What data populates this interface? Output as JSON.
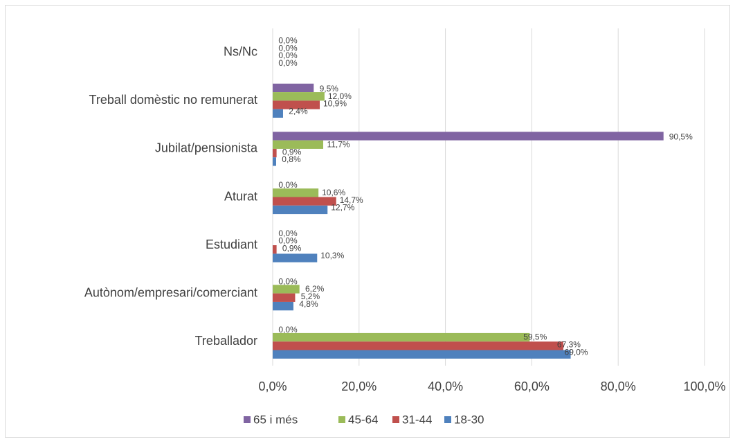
{
  "chart_data": {
    "type": "hbar",
    "categories": [
      "Ns/Nc",
      "Treball domèstic no remunerat",
      "Jubilat/pensionista",
      "Aturat",
      "Estudiant",
      "Autònom/empresari/comerciant",
      "Treballador"
    ],
    "series": [
      {
        "name": "65 i més",
        "color": "#8064a2",
        "values": [
          0,
          9.5,
          90.5,
          0,
          0,
          0,
          0
        ],
        "value_labels": [
          "0,0%",
          "9,5%",
          "90,5%",
          "0,0%",
          "0,0%",
          "0,0%",
          "0,0%"
        ]
      },
      {
        "name": "45-64",
        "color": "#9bbb59",
        "values": [
          0,
          12.0,
          11.7,
          10.6,
          0,
          6.2,
          59.5
        ],
        "value_labels": [
          "0,0%",
          "12,0%",
          "11,7%",
          "10,6%",
          "0,0%",
          "6,2%",
          "59,5%"
        ]
      },
      {
        "name": "31-44",
        "color": "#c0504d",
        "values": [
          0,
          10.9,
          0.9,
          14.7,
          0.9,
          5.2,
          67.3
        ],
        "value_labels": [
          "0,0%",
          "10,9%",
          "0,9%",
          "14,7%",
          "0,9%",
          "5,2%",
          "67,3%"
        ]
      },
      {
        "name": "18-30",
        "color": "#4f81bd",
        "values": [
          0,
          2.4,
          0.8,
          12.7,
          10.3,
          4.8,
          69.0
        ],
        "value_labels": [
          "0,0%",
          "2,4%",
          "0,8%",
          "12,7%",
          "10,3%",
          "4,8%",
          "69,0%"
        ]
      }
    ],
    "xlim": [
      0,
      100
    ],
    "xticks": [
      {
        "value": 0,
        "label": "0,0%"
      },
      {
        "value": 20,
        "label": "20,0%"
      },
      {
        "value": 40,
        "label": "40,0%"
      },
      {
        "value": 60,
        "label": "60,0%"
      },
      {
        "value": 80,
        "label": "80,0%"
      },
      {
        "value": 100,
        "label": "100,0%"
      }
    ],
    "grid": true,
    "legend": "bottom"
  }
}
